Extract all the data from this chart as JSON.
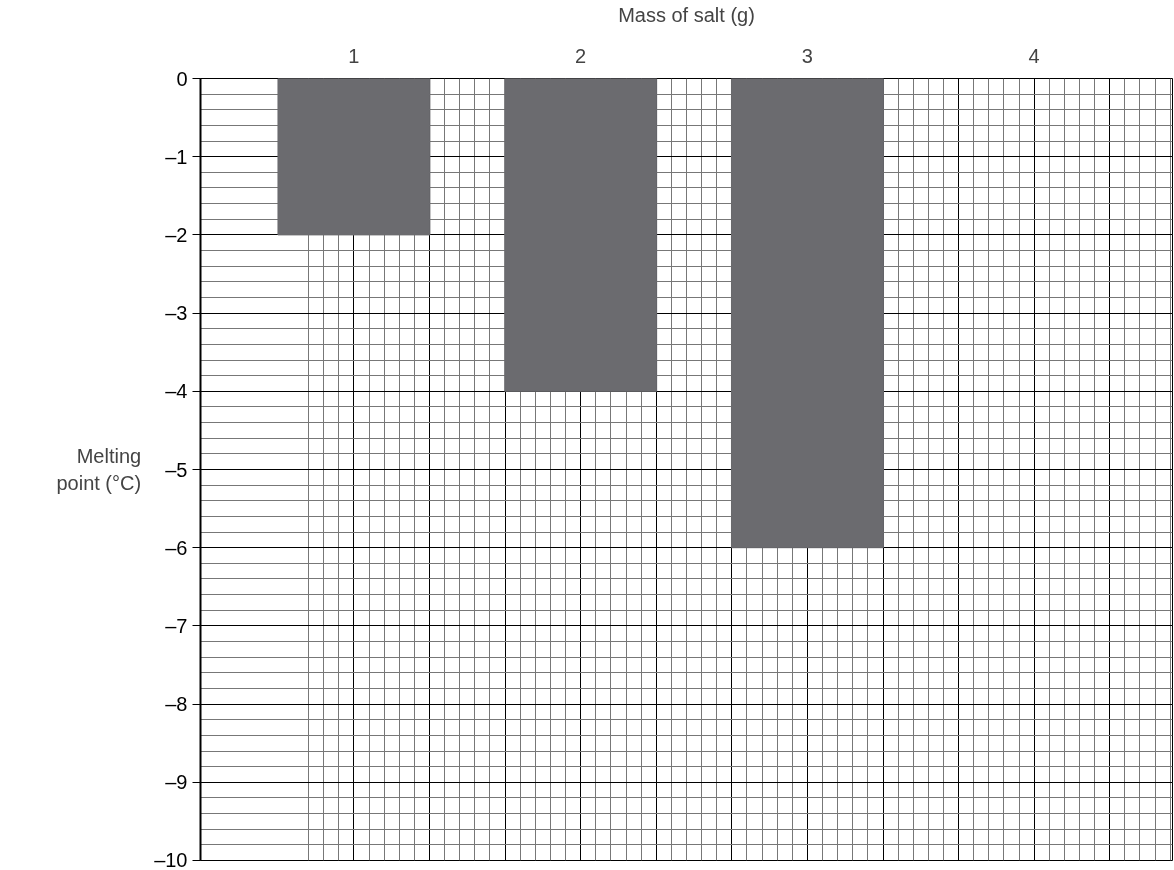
{
  "chart_data": {
    "type": "bar",
    "xlabel": "Mass of salt (g)",
    "ylabel": "Melting point (°C)",
    "categories": [
      "1",
      "2",
      "3",
      "4"
    ],
    "values": [
      -2,
      -4,
      -6,
      null
    ],
    "color": "#6b6b6f",
    "ylim": [
      -10,
      0
    ],
    "yticks": [
      0,
      {
        "value": -1,
        "label": "–1"
      },
      {
        "value": -2,
        "label": "–2"
      },
      {
        "value": -3,
        "label": "–3"
      },
      {
        "value": -4,
        "label": "–4"
      },
      {
        "value": -5,
        "label": "–5"
      },
      {
        "value": -6,
        "label": "–6"
      },
      {
        "value": -7,
        "label": "–7"
      },
      {
        "value": -8,
        "label": "–8"
      },
      {
        "value": -9,
        "label": "–9"
      },
      {
        "value": -10,
        "label": "–10"
      }
    ],
    "grid": true
  }
}
